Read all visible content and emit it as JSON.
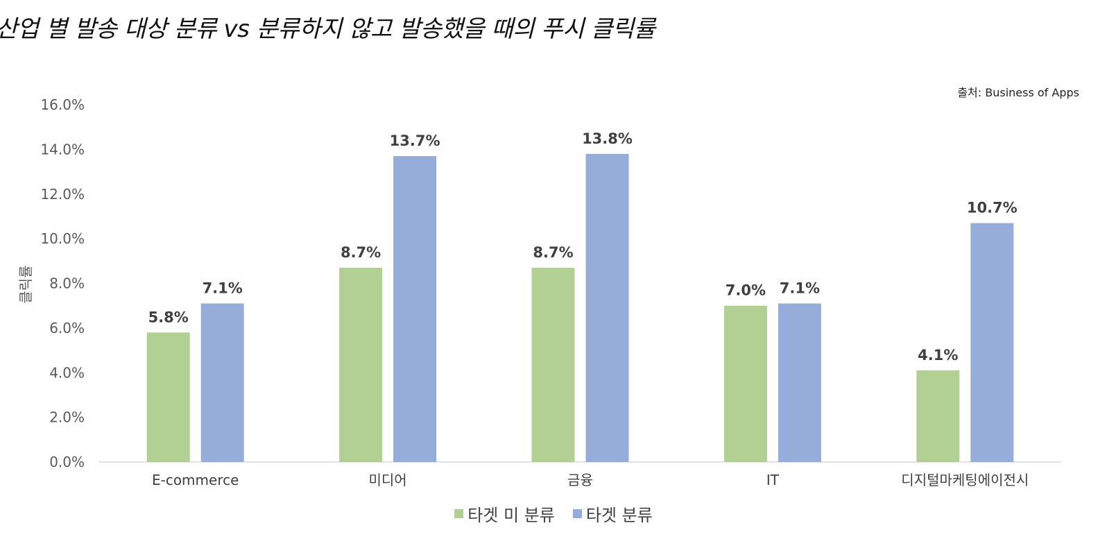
{
  "title": "산업 별 발송 대상 분류 vs 분류하지 않고 발송했을 때의 푸시 클릭률",
  "source": "출처: Business of Apps",
  "chart_data": {
    "type": "bar",
    "title": "산업 별 발송 대상 분류 vs 분류하지 않고 발송했을 때의 푸시 클릭률",
    "xlabel": "",
    "ylabel": "클릭률",
    "ylim": [
      0,
      16
    ],
    "yticks": [
      0,
      2,
      4,
      6,
      8,
      10,
      12,
      14,
      16
    ],
    "ytick_labels": [
      "0.0%",
      "2.0%",
      "4.0%",
      "6.0%",
      "8.0%",
      "10.0%",
      "12.0%",
      "14.0%",
      "16.0%"
    ],
    "categories": [
      "E-commerce",
      "미디어",
      "금융",
      "IT",
      "디지털마케팅에이전시"
    ],
    "series": [
      {
        "name": "타겟 미 분류",
        "color": "#b2d093",
        "values": [
          5.8,
          8.7,
          8.7,
          7.0,
          4.1
        ],
        "labels": [
          "5.8%",
          "8.7%",
          "8.7%",
          "7.0%",
          "4.1%"
        ]
      },
      {
        "name": "타겟 분류",
        "color": "#96acd9",
        "values": [
          7.1,
          13.7,
          13.8,
          7.1,
          10.7
        ],
        "labels": [
          "7.1%",
          "13.7%",
          "13.8%",
          "7.1%",
          "10.7%"
        ]
      }
    ],
    "grid": false,
    "legend_position": "bottom"
  }
}
